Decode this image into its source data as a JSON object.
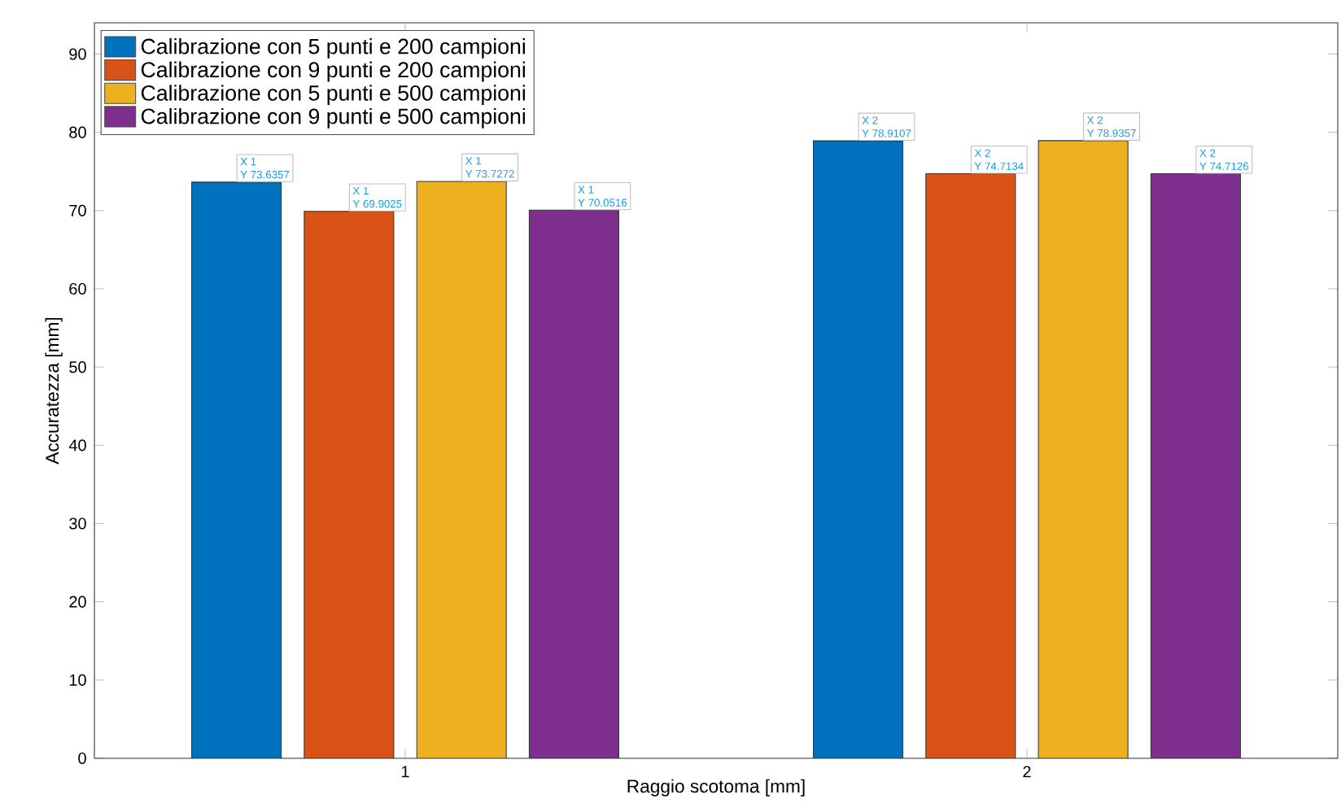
{
  "chart_data": {
    "type": "bar",
    "xlabel": "Raggio scotoma [mm]",
    "ylabel": "Accuratezza [mm]",
    "x": [
      1,
      2
    ],
    "xlim": [
      0.5,
      2.5
    ],
    "xticks": [
      1,
      2
    ],
    "ylim": [
      0,
      94
    ],
    "yticks": [
      0,
      10,
      20,
      30,
      40,
      50,
      60,
      70,
      80,
      90
    ],
    "legend": "top left",
    "grid": false,
    "series": [
      {
        "name": "Calibrazione con 5 punti e 200 campioni",
        "color": "#0072bd",
        "values": [
          73.6357,
          78.9107
        ]
      },
      {
        "name": "Calibrazione con 9 punti e 200 campioni",
        "color": "#d95319",
        "values": [
          69.9025,
          74.7134
        ]
      },
      {
        "name": "Calibrazione con 5 punti e 500 campioni",
        "color": "#edb120",
        "values": [
          73.7272,
          78.9357
        ]
      },
      {
        "name": "Calibrazione con 9 punti e 500 campioni",
        "color": "#7e2f8e",
        "values": [
          70.0516,
          74.7126
        ]
      }
    ],
    "annotations": [
      "X 1",
      "Y 73.6357",
      "X 1",
      "Y 69.9025",
      "X 1",
      "Y 73.7272",
      "X 1",
      "Y 70.0516",
      "X 2",
      "Y 78.9107",
      "X 2",
      "Y 74.7134",
      "X 2",
      "Y 78.9357",
      "X 2",
      "Y 74.7126"
    ]
  }
}
